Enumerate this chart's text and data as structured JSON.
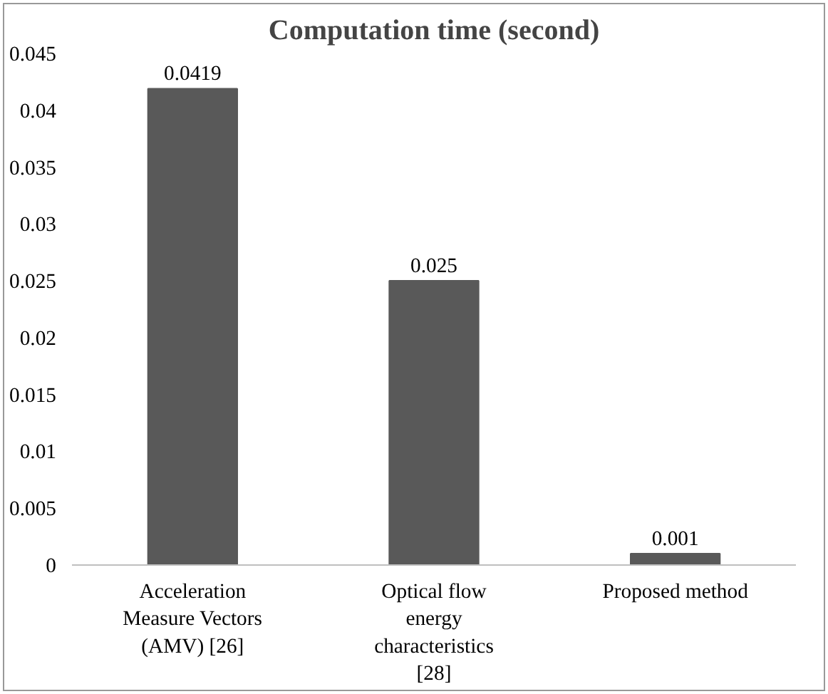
{
  "chart_data": {
    "type": "bar",
    "title": "Computation time (second)",
    "categories": [
      "Acceleration Measure Vectors (AMV) [26]",
      "Optical flow energy characteristics [28]",
      "Proposed method"
    ],
    "values": [
      0.0419,
      0.025,
      0.001
    ],
    "color": "#595959",
    "ylim": [
      0,
      0.045
    ],
    "yticks": [
      0,
      0.005,
      0.01,
      0.015,
      0.02,
      0.025,
      0.03,
      0.035,
      0.04,
      0.045
    ],
    "data_labels": true,
    "grid": false
  }
}
